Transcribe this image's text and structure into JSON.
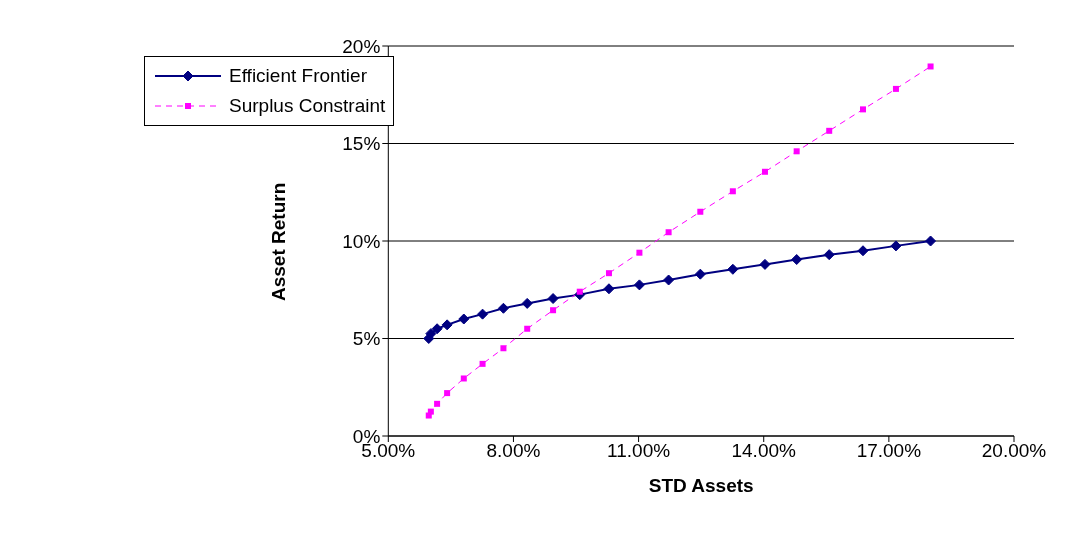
{
  "chart_data": {
    "type": "line",
    "xlabel": "STD Assets",
    "ylabel": "Asset Return",
    "xlim": [
      5,
      20
    ],
    "ylim": [
      0,
      20
    ],
    "xticks": [
      {
        "value": 5,
        "label": "5.00%"
      },
      {
        "value": 8,
        "label": "8.00%"
      },
      {
        "value": 11,
        "label": "11.00%"
      },
      {
        "value": 14,
        "label": "14.00%"
      },
      {
        "value": 17,
        "label": "17.00%"
      },
      {
        "value": 20,
        "label": "20.00%"
      }
    ],
    "yticks": [
      {
        "value": 0,
        "label": "0%"
      },
      {
        "value": 5,
        "label": "5%"
      },
      {
        "value": 10,
        "label": "10%"
      },
      {
        "value": 15,
        "label": "15%"
      },
      {
        "value": 20,
        "label": "20%"
      }
    ],
    "grid": "y",
    "legend": "top left",
    "x": [
      5.97,
      6.02,
      6.17,
      6.41,
      6.81,
      7.26,
      7.76,
      8.33,
      8.95,
      9.59,
      10.29,
      11.02,
      11.72,
      12.48,
      13.26,
      14.03,
      14.79,
      15.57,
      16.38,
      17.17,
      18.0
    ],
    "series": [
      {
        "name": "Efficient Frontier",
        "color": "#000080",
        "marker": "diamond",
        "line_style": "solid",
        "values": [
          5.0,
          5.25,
          5.5,
          5.7,
          6.0,
          6.25,
          6.55,
          6.8,
          7.05,
          7.25,
          7.55,
          7.75,
          8.0,
          8.3,
          8.55,
          8.8,
          9.05,
          9.3,
          9.5,
          9.75,
          10.0
        ]
      },
      {
        "name": "Surplus Constraint",
        "color": "#ff00ff",
        "marker": "square",
        "line_style": "dashed",
        "values": [
          1.05,
          1.25,
          1.65,
          2.2,
          2.95,
          3.7,
          4.5,
          5.5,
          6.45,
          7.4,
          8.35,
          9.4,
          10.45,
          11.5,
          12.55,
          13.55,
          14.6,
          15.65,
          16.75,
          17.8,
          18.95
        ]
      }
    ]
  }
}
